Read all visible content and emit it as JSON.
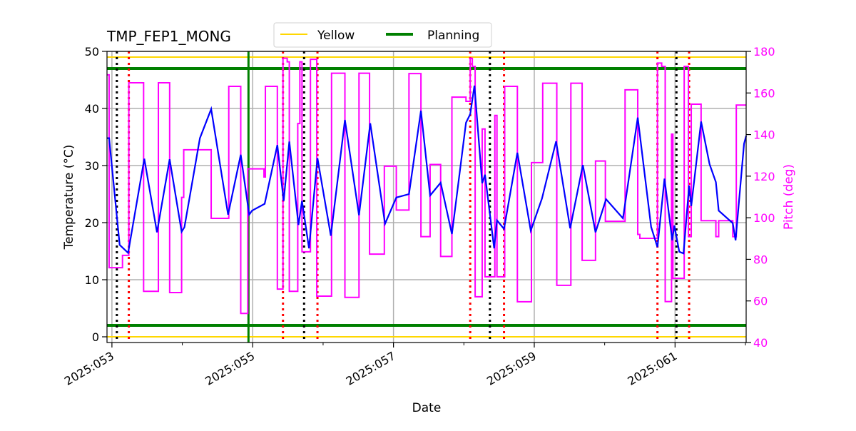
{
  "chart_data": {
    "type": "line",
    "title": "TMP_FEP1_MONG",
    "xlabel": "Date",
    "ylabel": "Temperature (°C)",
    "ylabel_right": "Pitch (deg)",
    "xlim": [
      52.93,
      62.01
    ],
    "ylim": [
      -1,
      50
    ],
    "ylim_right": [
      40,
      180
    ],
    "x_ticks": [
      53,
      55,
      57,
      59,
      61
    ],
    "x_tick_labels": [
      "2025:053",
      "2025:055",
      "2025:057",
      "2025:059",
      "2025:061"
    ],
    "x_minor_ticks": [
      54,
      56,
      58,
      60,
      62
    ],
    "y_ticks": [
      0,
      10,
      20,
      30,
      40,
      50
    ],
    "y_ticks_right": [
      40,
      60,
      80,
      100,
      120,
      140,
      160,
      180
    ],
    "grid": true,
    "legend": {
      "placement": "top-center",
      "entries": [
        {
          "name": "Yellow",
          "color": "#ffd700"
        },
        {
          "name": "Planning",
          "color": "#008000"
        }
      ]
    },
    "colors": {
      "temperature": "#0000ff",
      "pitch": "#ff00ff",
      "yellow": "#ffd700",
      "planning": "#008000",
      "red_marker": "#ff0000",
      "black_marker": "#000000",
      "grid": "#b0b0b0"
    },
    "hlines": [
      {
        "series": "Yellow",
        "values": [
          49,
          0
        ]
      },
      {
        "series": "Planning",
        "values": [
          47,
          2
        ]
      }
    ],
    "vline_planning": [
      54.94
    ],
    "vlines_black_dotted": [
      53.07,
      55.73,
      58.37,
      61.02
    ],
    "vlines_red_dotted": [
      53.24,
      55.43,
      55.92,
      58.09,
      58.57,
      60.75,
      61.2
    ],
    "temperature": {
      "x": [
        52.93,
        52.96,
        53.11,
        53.23,
        53.46,
        53.64,
        53.82,
        53.99,
        54.03,
        54.25,
        54.41,
        54.65,
        54.83,
        54.95,
        54.99,
        55.17,
        55.35,
        55.44,
        55.52,
        55.65,
        55.7,
        55.8,
        55.92,
        56.11,
        56.31,
        56.51,
        56.67,
        56.88,
        57.04,
        57.22,
        57.39,
        57.52,
        57.67,
        57.83,
        58.03,
        58.09,
        58.15,
        58.26,
        58.3,
        58.43,
        58.47,
        58.57,
        58.76,
        58.95,
        59.11,
        59.31,
        59.51,
        59.69,
        59.87,
        60.02,
        60.26,
        60.47,
        60.66,
        60.75,
        60.85,
        60.96,
        60.99,
        61.06,
        61.12,
        61.2,
        61.23,
        61.37,
        61.49,
        61.58,
        61.62,
        61.82,
        61.86,
        61.98,
        62.01
      ],
      "y": [
        34.8,
        34.8,
        16.1,
        14.7,
        31.2,
        18.3,
        31.1,
        18.4,
        19.2,
        34.8,
        39.9,
        21.4,
        31.9,
        21.4,
        22.1,
        23.3,
        33.6,
        23.8,
        34.2,
        19.6,
        23.8,
        15.5,
        31.3,
        17.7,
        38.0,
        21.3,
        37.4,
        19.8,
        24.4,
        25.0,
        39.6,
        24.75,
        27.0,
        18.0,
        37.5,
        39.0,
        44.0,
        26.9,
        28.4,
        15.5,
        20.4,
        18.9,
        32.25,
        18.6,
        24.25,
        34.25,
        19.0,
        30.1,
        18.3,
        24.1,
        20.75,
        38.4,
        19.25,
        15.7,
        27.7,
        16.9,
        19.5,
        14.9,
        14.6,
        26.5,
        22.9,
        37.7,
        30.25,
        27.1,
        22.1,
        19.9,
        16.9,
        33.8,
        35.2
      ]
    },
    "pitch": {
      "x": [
        52.93,
        52.96,
        53.15,
        53.24,
        53.45,
        53.66,
        53.82,
        53.99,
        54.02,
        54.41,
        54.66,
        54.83,
        54.93,
        55.16,
        55.18,
        55.35,
        55.43,
        55.49,
        55.52,
        55.64,
        55.67,
        55.7,
        55.82,
        55.91,
        56.12,
        56.31,
        56.51,
        56.66,
        56.87,
        57.04,
        57.22,
        57.39,
        57.52,
        57.67,
        57.83,
        58.03,
        58.09,
        58.12,
        58.16,
        58.26,
        58.3,
        58.44,
        58.47,
        58.58,
        58.76,
        58.96,
        59.12,
        59.32,
        59.52,
        59.68,
        59.87,
        60.01,
        60.29,
        60.47,
        60.5,
        60.75,
        60.81,
        60.86,
        60.95,
        60.97,
        61.13,
        61.19,
        61.23,
        61.37,
        61.58,
        61.62,
        61.82,
        61.87
      ],
      "y": [
        168.7,
        76,
        81.9,
        164.9,
        64.6,
        164.9,
        64,
        109.8,
        132.7,
        99.7,
        163.2,
        54,
        123.5,
        119.6,
        163.2,
        65.7,
        176.7,
        175,
        64.6,
        145.3,
        175,
        83.6,
        176.2,
        62.3,
        169.5,
        61.7,
        169.5,
        82.5,
        124.8,
        103.7,
        169.3,
        90.9,
        125.6,
        81.4,
        158,
        156,
        176.7,
        172.8,
        62,
        142.7,
        71.6,
        149.2,
        71.6,
        163.2,
        59.6,
        126.5,
        164.7,
        67.5,
        164.7,
        79.5,
        127.3,
        98.3,
        161.5,
        92,
        90.1,
        174.4,
        172.8,
        59.7,
        140.2,
        70.9,
        172.8,
        90.9,
        154.6,
        98.6,
        90.9,
        98.6,
        90.9,
        154.2
      ]
    }
  }
}
